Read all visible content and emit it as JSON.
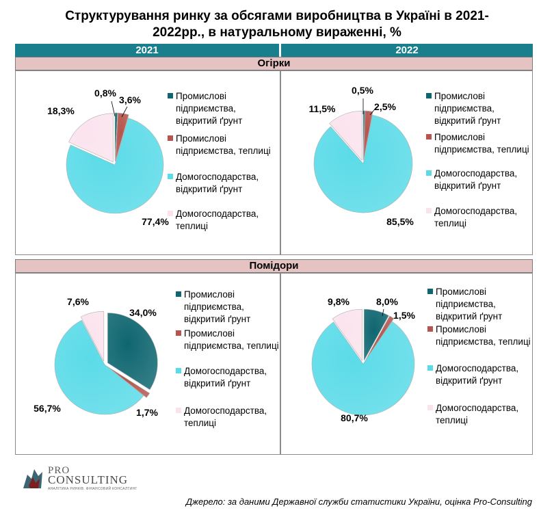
{
  "title": "Структурування ринку за обсягами виробництва в Україні в 2021-2022рр., в натуральному вираженні, %",
  "years": [
    "2021",
    "2022"
  ],
  "categories": [
    "Огірки",
    "Помідори"
  ],
  "legend": [
    {
      "label": "Промислові підприємства, відкритий ґрунт",
      "color": "#0f6670"
    },
    {
      "label": "Промислові підприємства, теплиці",
      "color": "#b5554d"
    },
    {
      "label": "Домогосподарства, відкритий ґрунт",
      "color": "#5bdbe8"
    },
    {
      "label": "Домогосподарства, теплиці",
      "color": "#fbe3ee"
    }
  ],
  "chart_data": [
    {
      "type": "pie",
      "category": "Огірки",
      "year": "2021",
      "values": [
        0.8,
        3.6,
        77.4,
        18.3
      ],
      "labels": [
        "0,8%",
        "3,6%",
        "77,4%",
        "18,3%"
      ]
    },
    {
      "type": "pie",
      "category": "Огірки",
      "year": "2022",
      "values": [
        0.5,
        2.5,
        85.5,
        11.5
      ],
      "labels": [
        "0,5%",
        "2,5%",
        "85,5%",
        "11,5%"
      ]
    },
    {
      "type": "pie",
      "category": "Помідори",
      "year": "2021",
      "values": [
        34.0,
        1.7,
        56.7,
        7.6
      ],
      "labels": [
        "34,0%",
        "1,7%",
        "56,7%",
        "7,6%"
      ]
    },
    {
      "type": "pie",
      "category": "Помідори",
      "year": "2022",
      "values": [
        8.0,
        1.5,
        80.7,
        9.8
      ],
      "labels": [
        "8,0%",
        "1,5%",
        "80,7%",
        "9,8%"
      ]
    }
  ],
  "logo": {
    "line1": "PRO",
    "line2": "CONSULTING",
    "tagline": "АНАЛІТИКА РИНКІВ. ФІНАНСОВИЙ КОНСАЛТИНГ"
  },
  "source": "Джерело: за даними Державної служби статистики України, оцінка Pro-Consulting"
}
